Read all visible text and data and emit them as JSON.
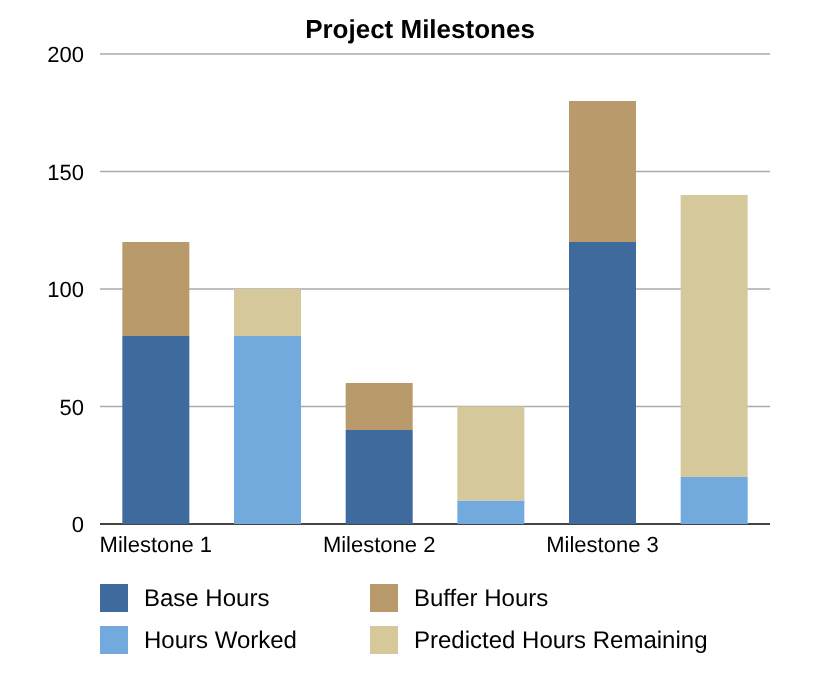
{
  "chart_data": {
    "type": "bar",
    "title": "Project Milestones",
    "stacked": true,
    "categories": [
      "Milestone 1",
      null,
      "Milestone 2",
      null,
      "Milestone 3",
      null
    ],
    "series": [
      {
        "name": "Base Hours",
        "color": "#3e6a9e",
        "values": [
          80,
          null,
          40,
          null,
          120,
          null
        ]
      },
      {
        "name": "Hours Worked",
        "color": "#72aadd",
        "values": [
          null,
          80,
          null,
          10,
          null,
          20
        ]
      },
      {
        "name": "Buffer Hours",
        "color": "#b99a6b",
        "values": [
          40,
          null,
          20,
          null,
          60,
          null
        ]
      },
      {
        "name": "Predicted Hours Remaining",
        "color": "#d5c99c",
        "values": [
          null,
          20,
          null,
          40,
          null,
          120
        ]
      }
    ],
    "ylim": [
      0,
      200
    ],
    "yticks": [
      0,
      50,
      100,
      150,
      200
    ],
    "grid": "y",
    "legend": "bottom"
  }
}
